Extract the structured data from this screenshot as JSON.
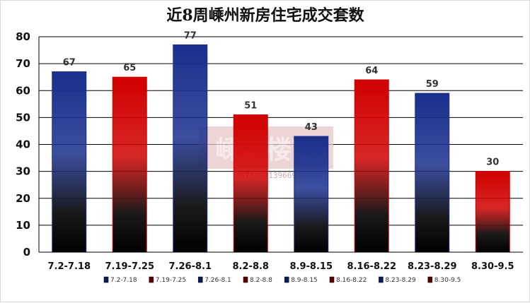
{
  "chart_data": {
    "type": "bar",
    "title": "近8周嵊州新房住宅成交套数",
    "xlabel": "",
    "ylabel": "",
    "categories": [
      "7.2-7.18",
      "7.19-7.25",
      "7.26-8.1",
      "8.2-8.8",
      "8.9-8.15",
      "8.16-8.22",
      "8.23-8.29",
      "8.30-9.5"
    ],
    "values": [
      67,
      65,
      77,
      51,
      43,
      64,
      59,
      30
    ],
    "ylim": [
      0,
      80
    ],
    "yticks": [
      0,
      10,
      20,
      30,
      40,
      50,
      60,
      70,
      80
    ],
    "grid": true,
    "legend_position": "bottom",
    "bar_colors": [
      "#1a2f8c",
      "#d00000",
      "#1a2f8c",
      "#d00000",
      "#1a2f8c",
      "#d00000",
      "#1a2f8c",
      "#d00000"
    ]
  },
  "watermark": {
    "brand": "嵊新楼市",
    "phone": "0575-83139669"
  }
}
